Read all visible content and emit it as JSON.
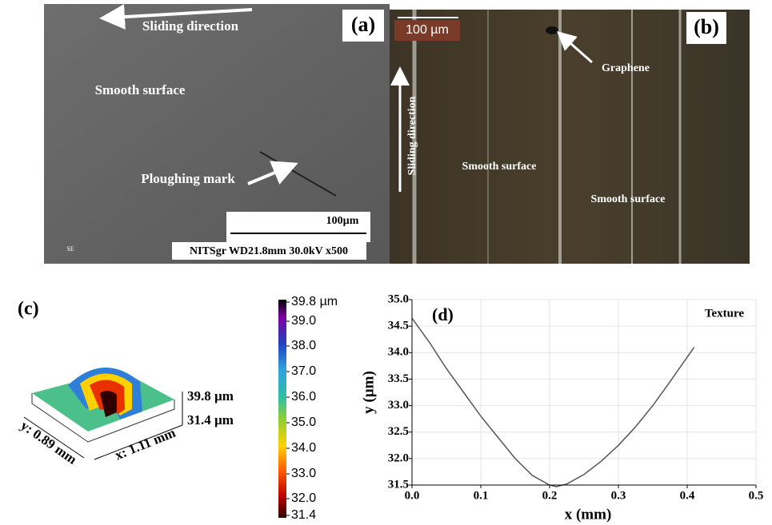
{
  "panels": {
    "a": {
      "label": "(a)",
      "sliding": "Sliding direction",
      "smooth": "Smooth surface",
      "plough": "Ploughing mark",
      "scale": "100µm",
      "info": "NITSgr WD21.8mm 30.0kV x500",
      "mode": "SE"
    },
    "b": {
      "label": "(b)",
      "scale": "100 µm",
      "graphene": "Graphene",
      "sliding": "Sliding direction",
      "smooth1": "Smooth surface",
      "smooth2": "Smooth surface"
    },
    "c": {
      "label": "(c)",
      "zmax": "39.8 µm",
      "zmin": "31.4 µm",
      "ydim": "y: 0.89 mm",
      "xdim": "x: 1.11 mm",
      "colorbar": [
        "39.8 µm",
        "39.0",
        "38.0",
        "37.0",
        "36.0",
        "35.0",
        "34.0",
        "33.0",
        "32.0",
        "31.4"
      ]
    }
  },
  "chart_data": {
    "type": "line",
    "label": "(d)",
    "legend": "Texture",
    "x_label": "x (mm)",
    "y_label": "y (µm)",
    "x": [
      0,
      0.025,
      0.05,
      0.075,
      0.1,
      0.125,
      0.15,
      0.175,
      0.2,
      0.21,
      0.225,
      0.25,
      0.275,
      0.3,
      0.325,
      0.35,
      0.375,
      0.41
    ],
    "series": [
      {
        "name": "Texture",
        "color": "#555555",
        "values": [
          34.65,
          34.2,
          33.7,
          33.25,
          32.8,
          32.4,
          32.0,
          31.68,
          31.5,
          31.47,
          31.52,
          31.7,
          31.95,
          32.25,
          32.6,
          33.0,
          33.45,
          34.1
        ]
      }
    ],
    "xlim": [
      0,
      0.5
    ],
    "xticks": [
      {
        "value": 0,
        "label": "0.0"
      },
      0.1,
      0.2,
      0.3,
      0.4,
      0.5
    ],
    "ylim": [
      31.5,
      35
    ],
    "yticks": [
      {
        "value": 31.5,
        "label": "31.5"
      },
      {
        "value": 32,
        "label": "32.0"
      },
      32.5,
      {
        "value": 33,
        "label": "33.0"
      },
      33.5,
      {
        "value": 34,
        "label": "34.0"
      },
      34.5,
      {
        "value": 35,
        "label": "35.0"
      }
    ],
    "grid": true
  }
}
